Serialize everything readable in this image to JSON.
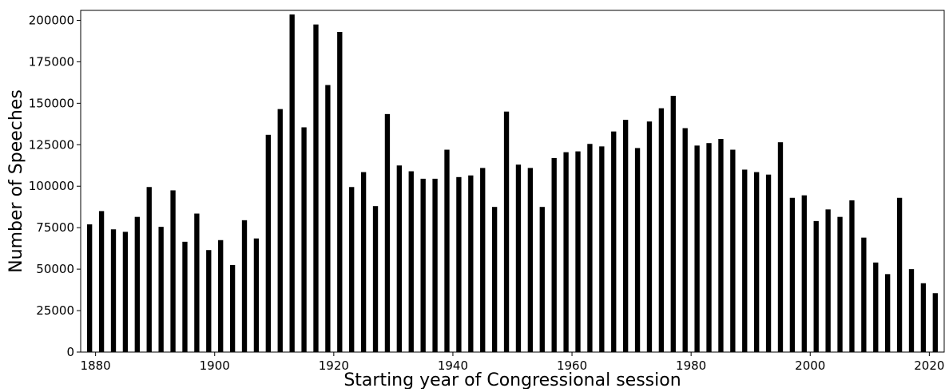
{
  "chart_data": {
    "type": "bar",
    "title": "",
    "xlabel": "Starting year of Congressional session",
    "ylabel": "Number of Speeches",
    "x": [
      1879,
      1881,
      1883,
      1885,
      1887,
      1889,
      1891,
      1893,
      1895,
      1897,
      1899,
      1901,
      1903,
      1905,
      1907,
      1909,
      1911,
      1913,
      1915,
      1917,
      1919,
      1921,
      1923,
      1925,
      1927,
      1929,
      1931,
      1933,
      1935,
      1937,
      1939,
      1941,
      1943,
      1945,
      1947,
      1949,
      1951,
      1953,
      1955,
      1957,
      1959,
      1961,
      1963,
      1965,
      1967,
      1969,
      1971,
      1973,
      1975,
      1977,
      1979,
      1981,
      1983,
      1985,
      1987,
      1989,
      1991,
      1993,
      1995,
      1997,
      1999,
      2001,
      2003,
      2005,
      2007,
      2009,
      2011,
      2013,
      2015,
      2017,
      2019,
      2021
    ],
    "values": [
      77000,
      85000,
      74000,
      72500,
      81500,
      99500,
      75500,
      97500,
      66500,
      83500,
      61500,
      67500,
      52500,
      79500,
      68500,
      131000,
      146500,
      203500,
      135500,
      197500,
      161000,
      193000,
      99500,
      108500,
      88000,
      143500,
      112500,
      109000,
      104500,
      104500,
      122000,
      105500,
      106500,
      111000,
      87500,
      145000,
      113000,
      111000,
      87500,
      117000,
      120500,
      121000,
      125500,
      124000,
      133000,
      140000,
      123000,
      139000,
      147000,
      154500,
      135000,
      124500,
      126000,
      128500,
      122000,
      110000,
      108500,
      107000,
      126500,
      93000,
      94500,
      79000,
      86000,
      81500,
      91500,
      69000,
      54000,
      47000,
      93000,
      50000,
      41500,
      35500
    ],
    "xlim": [
      1877.5,
      2022.5
    ],
    "ylim": [
      0,
      206000
    ],
    "x_ticks": [
      "1880",
      "1900",
      "1920",
      "1940",
      "1960",
      "1980",
      "2000",
      "2020"
    ],
    "y_ticks": [
      "0",
      "25000",
      "50000",
      "75000",
      "100000",
      "125000",
      "150000",
      "175000",
      "200000"
    ],
    "bar_color": "#000000",
    "grid": false,
    "legend": "none"
  }
}
